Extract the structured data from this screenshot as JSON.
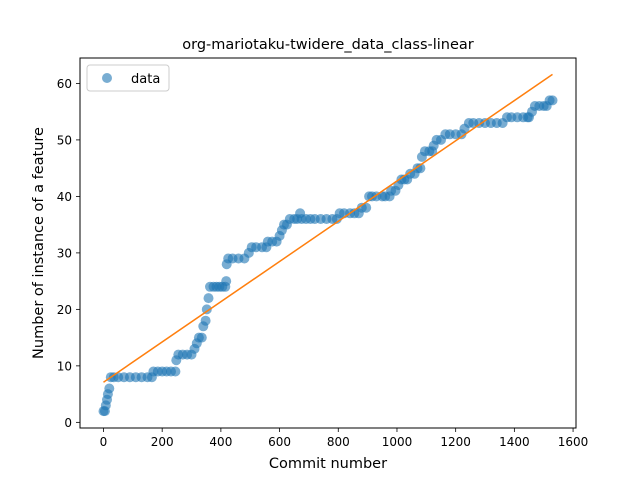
{
  "chart_data": {
    "type": "scatter",
    "title": "org-mariotaku-twidere_data_class-linear",
    "xlabel": "Commit number",
    "ylabel": "Number of instance of a feature",
    "xlim": [
      -80,
      1610
    ],
    "ylim": [
      -1,
      64.5
    ],
    "xticks": [
      0,
      200,
      400,
      600,
      800,
      1000,
      1200,
      1400,
      1600
    ],
    "yticks": [
      0,
      10,
      20,
      30,
      40,
      50,
      60
    ],
    "grid": false,
    "legend": {
      "position": "top-left",
      "entries": [
        "data"
      ]
    },
    "colors": {
      "data": "#1f77b4",
      "fit": "#ff7f0e"
    },
    "series": [
      {
        "name": "data",
        "kind": "points",
        "points": [
          [
            0,
            2
          ],
          [
            5,
            2
          ],
          [
            8,
            3
          ],
          [
            12,
            4
          ],
          [
            15,
            5
          ],
          [
            20,
            6
          ],
          [
            25,
            8
          ],
          [
            35,
            8
          ],
          [
            50,
            8
          ],
          [
            70,
            8
          ],
          [
            90,
            8
          ],
          [
            110,
            8
          ],
          [
            130,
            8
          ],
          [
            150,
            8
          ],
          [
            165,
            8
          ],
          [
            170,
            9
          ],
          [
            185,
            9
          ],
          [
            200,
            9
          ],
          [
            215,
            9
          ],
          [
            230,
            9
          ],
          [
            245,
            9
          ],
          [
            248,
            11
          ],
          [
            255,
            12
          ],
          [
            270,
            12
          ],
          [
            285,
            12
          ],
          [
            300,
            12
          ],
          [
            310,
            13
          ],
          [
            318,
            14
          ],
          [
            325,
            15
          ],
          [
            335,
            15
          ],
          [
            340,
            17
          ],
          [
            348,
            18
          ],
          [
            352,
            20
          ],
          [
            358,
            22
          ],
          [
            363,
            24
          ],
          [
            375,
            24
          ],
          [
            385,
            24
          ],
          [
            395,
            24
          ],
          [
            405,
            24
          ],
          [
            415,
            24
          ],
          [
            418,
            25
          ],
          [
            420,
            28
          ],
          [
            425,
            29
          ],
          [
            440,
            29
          ],
          [
            460,
            29
          ],
          [
            480,
            29
          ],
          [
            495,
            30
          ],
          [
            505,
            31
          ],
          [
            520,
            31
          ],
          [
            540,
            31
          ],
          [
            555,
            31
          ],
          [
            560,
            32
          ],
          [
            575,
            32
          ],
          [
            590,
            32
          ],
          [
            600,
            33
          ],
          [
            608,
            34
          ],
          [
            615,
            35
          ],
          [
            625,
            35
          ],
          [
            635,
            36
          ],
          [
            650,
            36
          ],
          [
            660,
            36
          ],
          [
            670,
            37
          ],
          [
            675,
            36
          ],
          [
            690,
            36
          ],
          [
            705,
            36
          ],
          [
            720,
            36
          ],
          [
            740,
            36
          ],
          [
            760,
            36
          ],
          [
            780,
            36
          ],
          [
            795,
            36
          ],
          [
            805,
            37
          ],
          [
            820,
            37
          ],
          [
            840,
            37
          ],
          [
            855,
            37
          ],
          [
            870,
            37
          ],
          [
            880,
            38
          ],
          [
            895,
            38
          ],
          [
            905,
            40
          ],
          [
            915,
            40
          ],
          [
            930,
            40
          ],
          [
            950,
            40
          ],
          [
            960,
            40
          ],
          [
            975,
            40
          ],
          [
            980,
            41
          ],
          [
            995,
            41
          ],
          [
            1005,
            42
          ],
          [
            1015,
            43
          ],
          [
            1025,
            43
          ],
          [
            1035,
            43
          ],
          [
            1045,
            44
          ],
          [
            1060,
            44
          ],
          [
            1070,
            45
          ],
          [
            1080,
            45
          ],
          [
            1085,
            47
          ],
          [
            1095,
            48
          ],
          [
            1110,
            48
          ],
          [
            1120,
            48
          ],
          [
            1125,
            49
          ],
          [
            1135,
            50
          ],
          [
            1150,
            50
          ],
          [
            1165,
            51
          ],
          [
            1180,
            51
          ],
          [
            1200,
            51
          ],
          [
            1220,
            51
          ],
          [
            1230,
            52
          ],
          [
            1245,
            53
          ],
          [
            1260,
            53
          ],
          [
            1280,
            53
          ],
          [
            1300,
            53
          ],
          [
            1320,
            53
          ],
          [
            1340,
            53
          ],
          [
            1360,
            53
          ],
          [
            1375,
            54
          ],
          [
            1390,
            54
          ],
          [
            1410,
            54
          ],
          [
            1430,
            54
          ],
          [
            1445,
            54
          ],
          [
            1450,
            54
          ],
          [
            1460,
            55
          ],
          [
            1470,
            56
          ],
          [
            1485,
            56
          ],
          [
            1500,
            56
          ],
          [
            1510,
            56
          ],
          [
            1520,
            57
          ],
          [
            1530,
            57
          ]
        ]
      },
      {
        "name": "",
        "kind": "line",
        "points": [
          [
            0,
            7.1
          ],
          [
            1530,
            61.6
          ]
        ]
      }
    ]
  }
}
